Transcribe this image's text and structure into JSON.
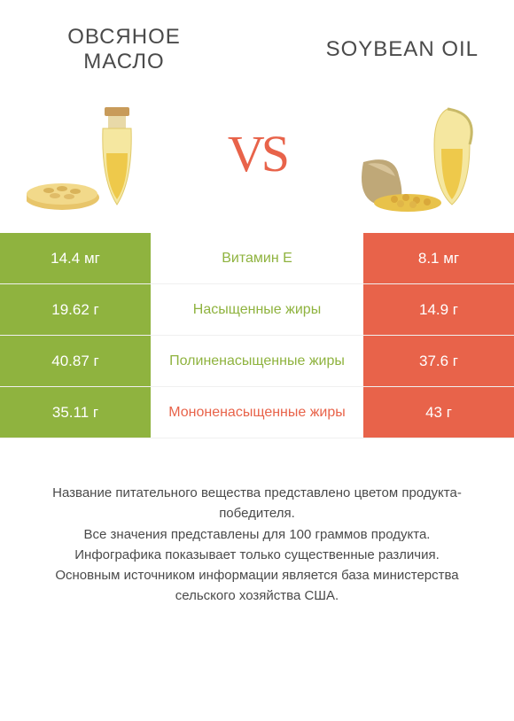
{
  "colors": {
    "left": "#8fb33f",
    "right": "#e8634a",
    "text_on_fill": "#ffffff",
    "text_plain": "#4a4a4a",
    "background": "#ffffff"
  },
  "header": {
    "left_title": "ОВСЯНОЕ МАСЛО",
    "right_title": "SOYBEAN OIL",
    "vs": "VS"
  },
  "rows": [
    {
      "label": "Витамин E",
      "left": "14.4 мг",
      "right": "8.1 мг",
      "winner": "left"
    },
    {
      "label": "Насыщенные жиры",
      "left": "19.62 г",
      "right": "14.9 г",
      "winner": "left"
    },
    {
      "label": "Полиненасыщенные жиры",
      "left": "40.87 г",
      "right": "37.6 г",
      "winner": "left"
    },
    {
      "label": "Мононенасыщенные жиры",
      "left": "35.11 г",
      "right": "43 г",
      "winner": "right"
    }
  ],
  "footer": {
    "line1": "Название питательного вещества представлено цветом продукта-победителя.",
    "line2": "Все значения представлены для 100 граммов продукта.",
    "line3": "Инфографика показывает только существенные различия.",
    "line4": "Основным источником информации является база министерства сельского хозяйства США."
  }
}
